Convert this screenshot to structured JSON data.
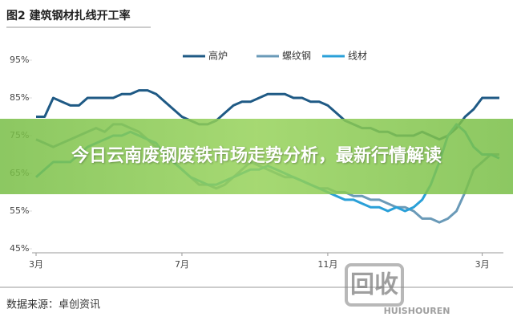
{
  "chart_data": {
    "type": "line",
    "title": "图2 建筑钢材扎线开工率",
    "categories": [
      "3月",
      null,
      null,
      null,
      null,
      null,
      null,
      null,
      null,
      null,
      null,
      null,
      null,
      null,
      null,
      null,
      null,
      "7月",
      null,
      null,
      null,
      null,
      null,
      null,
      null,
      null,
      null,
      null,
      null,
      null,
      null,
      null,
      null,
      null,
      "11月",
      null,
      null,
      null,
      null,
      null,
      null,
      null,
      null,
      null,
      null,
      null,
      null,
      null,
      null,
      null,
      null,
      null,
      "3月",
      null,
      null
    ],
    "series": [
      {
        "name": "高炉",
        "color": "#1f5a85",
        "values": [
          80,
          80,
          85,
          84,
          83,
          83,
          85,
          85,
          85,
          85,
          86,
          86,
          87,
          87,
          86,
          84,
          82,
          80,
          79,
          78,
          78,
          79,
          81,
          83,
          84,
          84,
          85,
          86,
          86,
          86,
          85,
          85,
          84,
          84,
          83,
          81,
          79,
          78,
          77,
          77,
          76,
          76,
          75,
          75,
          75,
          76,
          75,
          74,
          75,
          77,
          80,
          82,
          85,
          85,
          85
        ]
      },
      {
        "name": "螺纹钢",
        "color": "#6a9ab8",
        "values": [
          74,
          73,
          72,
          73,
          74,
          75,
          76,
          77,
          76,
          78,
          78,
          77,
          76,
          74,
          72,
          70,
          68,
          66,
          64,
          62,
          62,
          61,
          62,
          64,
          66,
          68,
          67,
          66,
          65,
          64,
          64,
          63,
          62,
          61,
          61,
          60,
          60,
          59,
          59,
          58,
          58,
          57,
          56,
          56,
          55,
          53,
          53,
          52,
          53,
          55,
          60,
          66,
          68,
          70,
          70
        ]
      },
      {
        "name": "线材",
        "color": "#2aa0d8",
        "values": [
          64,
          66,
          68,
          68,
          68,
          70,
          72,
          73,
          74,
          75,
          75,
          76,
          75,
          74,
          73,
          70,
          68,
          66,
          64,
          63,
          62,
          62,
          63,
          64,
          65,
          66,
          66,
          67,
          66,
          65,
          64,
          63,
          62,
          61,
          60,
          59,
          58,
          58,
          57,
          56,
          56,
          55,
          56,
          55,
          56,
          58,
          62,
          68,
          75,
          78,
          76,
          72,
          70,
          70,
          69
        ]
      }
    ],
    "ylim": [
      45,
      95
    ],
    "yticks": [
      {
        "value": 45,
        "label": "45%"
      },
      {
        "value": 55,
        "label": "55%"
      },
      {
        "value": 65,
        "label": "65%"
      },
      {
        "value": 75,
        "label": "75%"
      },
      {
        "value": 85,
        "label": "85%"
      },
      {
        "value": 95,
        "label": "95%"
      }
    ],
    "source": "数据来源：卓创资讯"
  },
  "banner": "今日云南废钢废铁市场走势分析，最新行情解读",
  "watermark": {
    "logo": "回收",
    "text": "HUISHOUREN"
  }
}
